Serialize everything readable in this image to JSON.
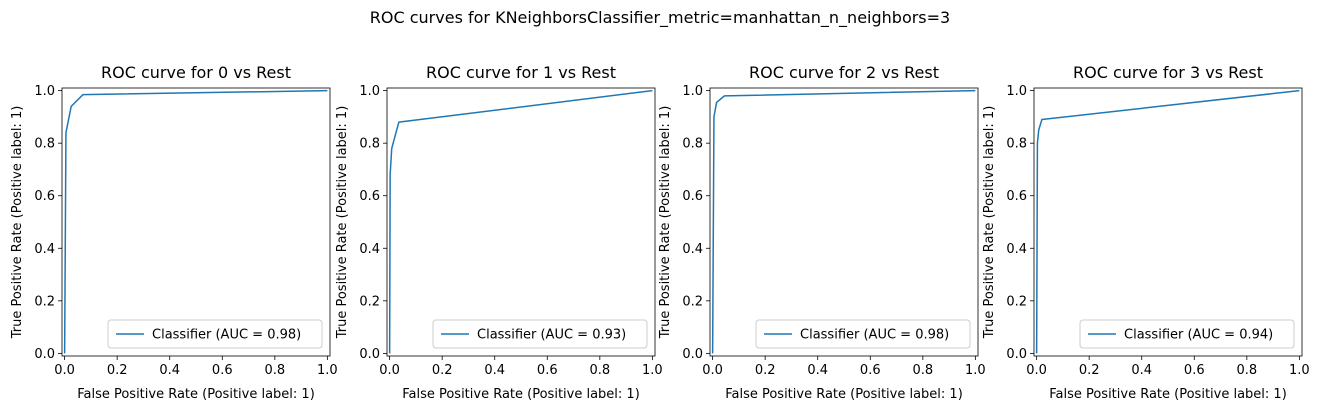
{
  "figure_title": "ROC curves for KNeighborsClassifier_metric=manhattan_n_neighbors=3",
  "colors": {
    "line": "#1f77b4",
    "axes": "#000000",
    "legend_border": "#cccccc"
  },
  "chart_data": [
    {
      "type": "line",
      "title": "ROC curve for 0 vs Rest",
      "xlabel": "False Positive Rate (Positive label: 1)",
      "ylabel": "True Positive Rate (Positive label: 1)",
      "xlim": [
        0,
        1
      ],
      "ylim": [
        0,
        1
      ],
      "xticks": [
        "0.0",
        "0.2",
        "0.4",
        "0.6",
        "0.8",
        "1.0"
      ],
      "yticks": [
        "0.0",
        "0.2",
        "0.4",
        "0.6",
        "0.8",
        "1.0"
      ],
      "legend_location": "lower right",
      "series": [
        {
          "name": "Classifier (AUC = 0.98)",
          "x": [
            0,
            0.005,
            0.025,
            0.07,
            1.0
          ],
          "y": [
            0,
            0.84,
            0.94,
            0.985,
            1.0
          ]
        }
      ]
    },
    {
      "type": "line",
      "title": "ROC curve for 1 vs Rest",
      "xlabel": "False Positive Rate (Positive label: 1)",
      "ylabel": "True Positive Rate (Positive label: 1)",
      "xlim": [
        0,
        1
      ],
      "ylim": [
        0,
        1
      ],
      "xticks": [
        "0.0",
        "0.2",
        "0.4",
        "0.6",
        "0.8",
        "1.0"
      ],
      "yticks": [
        "0.0",
        "0.2",
        "0.4",
        "0.6",
        "0.8",
        "1.0"
      ],
      "legend_location": "lower right",
      "series": [
        {
          "name": "Classifier (AUC = 0.93)",
          "x": [
            0,
            0.002,
            0.008,
            0.035,
            1.0
          ],
          "y": [
            0,
            0.68,
            0.78,
            0.88,
            1.0
          ]
        }
      ]
    },
    {
      "type": "line",
      "title": "ROC curve for 2 vs Rest",
      "xlabel": "False Positive Rate (Positive label: 1)",
      "ylabel": "True Positive Rate (Positive label: 1)",
      "xlim": [
        0,
        1
      ],
      "ylim": [
        0,
        1
      ],
      "xticks": [
        "0.0",
        "0.2",
        "0.4",
        "0.6",
        "0.8",
        "1.0"
      ],
      "yticks": [
        "0.0",
        "0.2",
        "0.4",
        "0.6",
        "0.8",
        "1.0"
      ],
      "legend_location": "lower right",
      "series": [
        {
          "name": "Classifier (AUC = 0.98)",
          "x": [
            0,
            0.005,
            0.015,
            0.045,
            1.0
          ],
          "y": [
            0,
            0.9,
            0.955,
            0.98,
            1.0
          ]
        }
      ]
    },
    {
      "type": "line",
      "title": "ROC curve for 3 vs Rest",
      "xlabel": "False Positive Rate (Positive label: 1)",
      "ylabel": "True Positive Rate (Positive label: 1)",
      "xlim": [
        0,
        1
      ],
      "ylim": [
        0,
        1
      ],
      "xticks": [
        "0.0",
        "0.2",
        "0.4",
        "0.6",
        "0.8",
        "1.0"
      ],
      "yticks": [
        "0.0",
        "0.2",
        "0.4",
        "0.6",
        "0.8",
        "1.0"
      ],
      "legend_location": "lower right",
      "series": [
        {
          "name": "Classifier (AUC = 0.94)",
          "x": [
            0,
            0.003,
            0.008,
            0.02,
            1.0
          ],
          "y": [
            0,
            0.8,
            0.85,
            0.89,
            1.0
          ]
        }
      ]
    }
  ]
}
